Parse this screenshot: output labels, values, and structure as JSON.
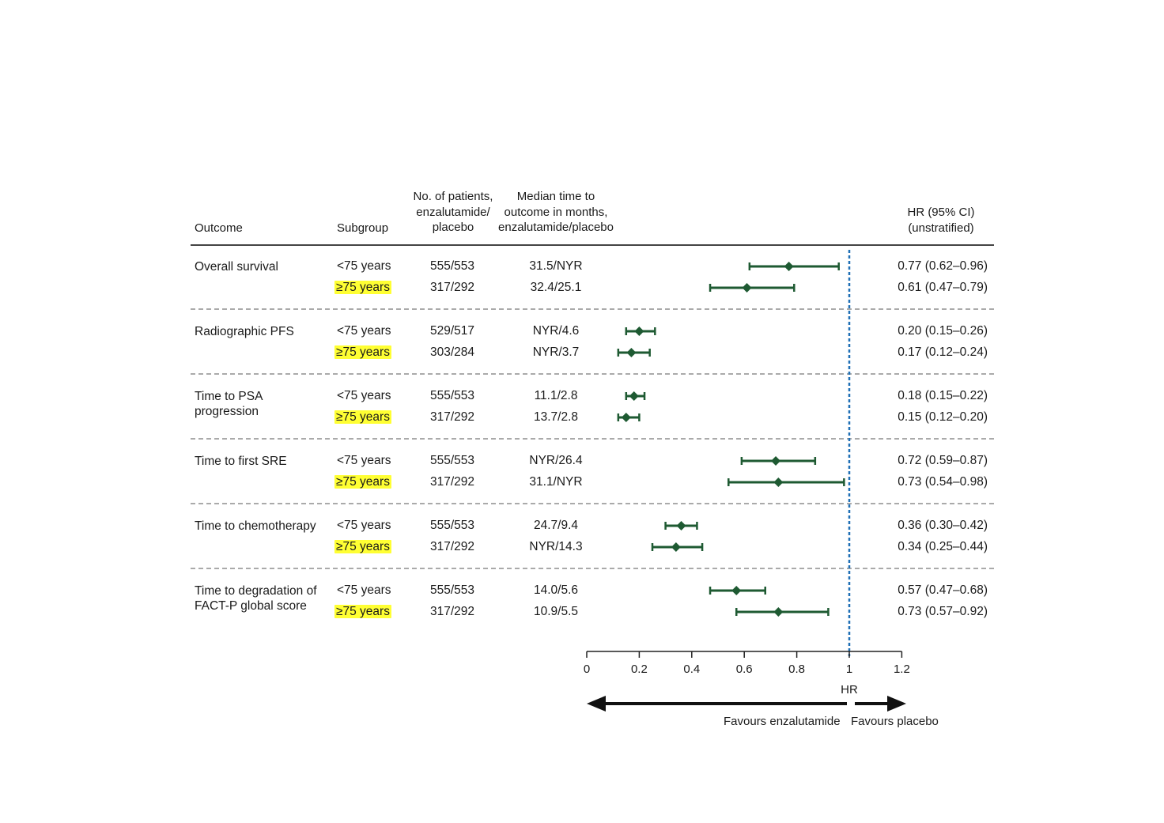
{
  "headers": {
    "outcome": "Outcome",
    "subgroup": "Subgroup",
    "patients": "No. of patients,\nenzalutamide/\nplacebo",
    "median": "Median time to\noutcome in months,\nenzalutamide/placebo",
    "hr": "HR (95% CI)\n(unstratified)"
  },
  "colors": {
    "marker": "#1e5a32",
    "reference_line": "#1f6fb5",
    "highlight": "#ffff33"
  },
  "chart_data": {
    "type": "forest",
    "xlabel": "HR",
    "xlim": [
      0,
      1.2
    ],
    "xticks": [
      "0",
      "0.2",
      "0.4",
      "0.6",
      "0.8",
      "1",
      "1.2"
    ],
    "reference_line": 1,
    "favours_left": "Favours enzalutamide",
    "favours_right": "Favours placebo",
    "groups": [
      {
        "outcome": "Overall survival",
        "rows": [
          {
            "subgroup": "<75 years",
            "patients": "555/553",
            "median": "31.5/NYR",
            "hr_text": "0.77 (0.62–0.96)",
            "hr": 0.77,
            "lo": 0.62,
            "hi": 0.96,
            "highlight": false
          },
          {
            "subgroup": "≥75 years",
            "patients": "317/292",
            "median": "32.4/25.1",
            "hr_text": "0.61 (0.47–0.79)",
            "hr": 0.61,
            "lo": 0.47,
            "hi": 0.79,
            "highlight": true
          }
        ]
      },
      {
        "outcome": "Radiographic PFS",
        "rows": [
          {
            "subgroup": "<75 years",
            "patients": "529/517",
            "median": "NYR/4.6",
            "hr_text": "0.20 (0.15–0.26)",
            "hr": 0.2,
            "lo": 0.15,
            "hi": 0.26,
            "highlight": false
          },
          {
            "subgroup": "≥75 years",
            "patients": "303/284",
            "median": "NYR/3.7",
            "hr_text": "0.17 (0.12–0.24)",
            "hr": 0.17,
            "lo": 0.12,
            "hi": 0.24,
            "highlight": true
          }
        ]
      },
      {
        "outcome": "Time to PSA\n progression",
        "rows": [
          {
            "subgroup": "<75 years",
            "patients": "555/553",
            "median": "11.1/2.8",
            "hr_text": "0.18 (0.15–0.22)",
            "hr": 0.18,
            "lo": 0.15,
            "hi": 0.22,
            "highlight": false
          },
          {
            "subgroup": "≥75 years",
            "patients": "317/292",
            "median": "13.7/2.8",
            "hr_text": "0.15 (0.12–0.20)",
            "hr": 0.15,
            "lo": 0.12,
            "hi": 0.2,
            "highlight": true
          }
        ]
      },
      {
        "outcome": "Time to first SRE",
        "rows": [
          {
            "subgroup": "<75 years",
            "patients": "555/553",
            "median": "NYR/26.4",
            "hr_text": "0.72 (0.59–0.87)",
            "hr": 0.72,
            "lo": 0.59,
            "hi": 0.87,
            "highlight": false
          },
          {
            "subgroup": "≥75 years",
            "patients": "317/292",
            "median": "31.1/NYR",
            "hr_text": "0.73 (0.54–0.98)",
            "hr": 0.73,
            "lo": 0.54,
            "hi": 0.98,
            "highlight": true
          }
        ]
      },
      {
        "outcome": "Time to chemotherapy",
        "rows": [
          {
            "subgroup": "<75 years",
            "patients": "555/553",
            "median": "24.7/9.4",
            "hr_text": "0.36 (0.30–0.42)",
            "hr": 0.36,
            "lo": 0.3,
            "hi": 0.42,
            "highlight": false
          },
          {
            "subgroup": "≥75 years",
            "patients": "317/292",
            "median": "NYR/14.3",
            "hr_text": "0.34 (0.25–0.44)",
            "hr": 0.34,
            "lo": 0.25,
            "hi": 0.44,
            "highlight": true
          }
        ]
      },
      {
        "outcome": " Time to degradation of\n FACT-P global score",
        "rows": [
          {
            "subgroup": "<75 years",
            "patients": "555/553",
            "median": "14.0/5.6",
            "hr_text": "0.57 (0.47–0.68)",
            "hr": 0.57,
            "lo": 0.47,
            "hi": 0.68,
            "highlight": false
          },
          {
            "subgroup": "≥75 years",
            "patients": "317/292",
            "median": "10.9/5.5",
            "hr_text": "0.73 (0.57–0.92)",
            "hr": 0.73,
            "lo": 0.57,
            "hi": 0.92,
            "highlight": true
          }
        ]
      }
    ]
  }
}
